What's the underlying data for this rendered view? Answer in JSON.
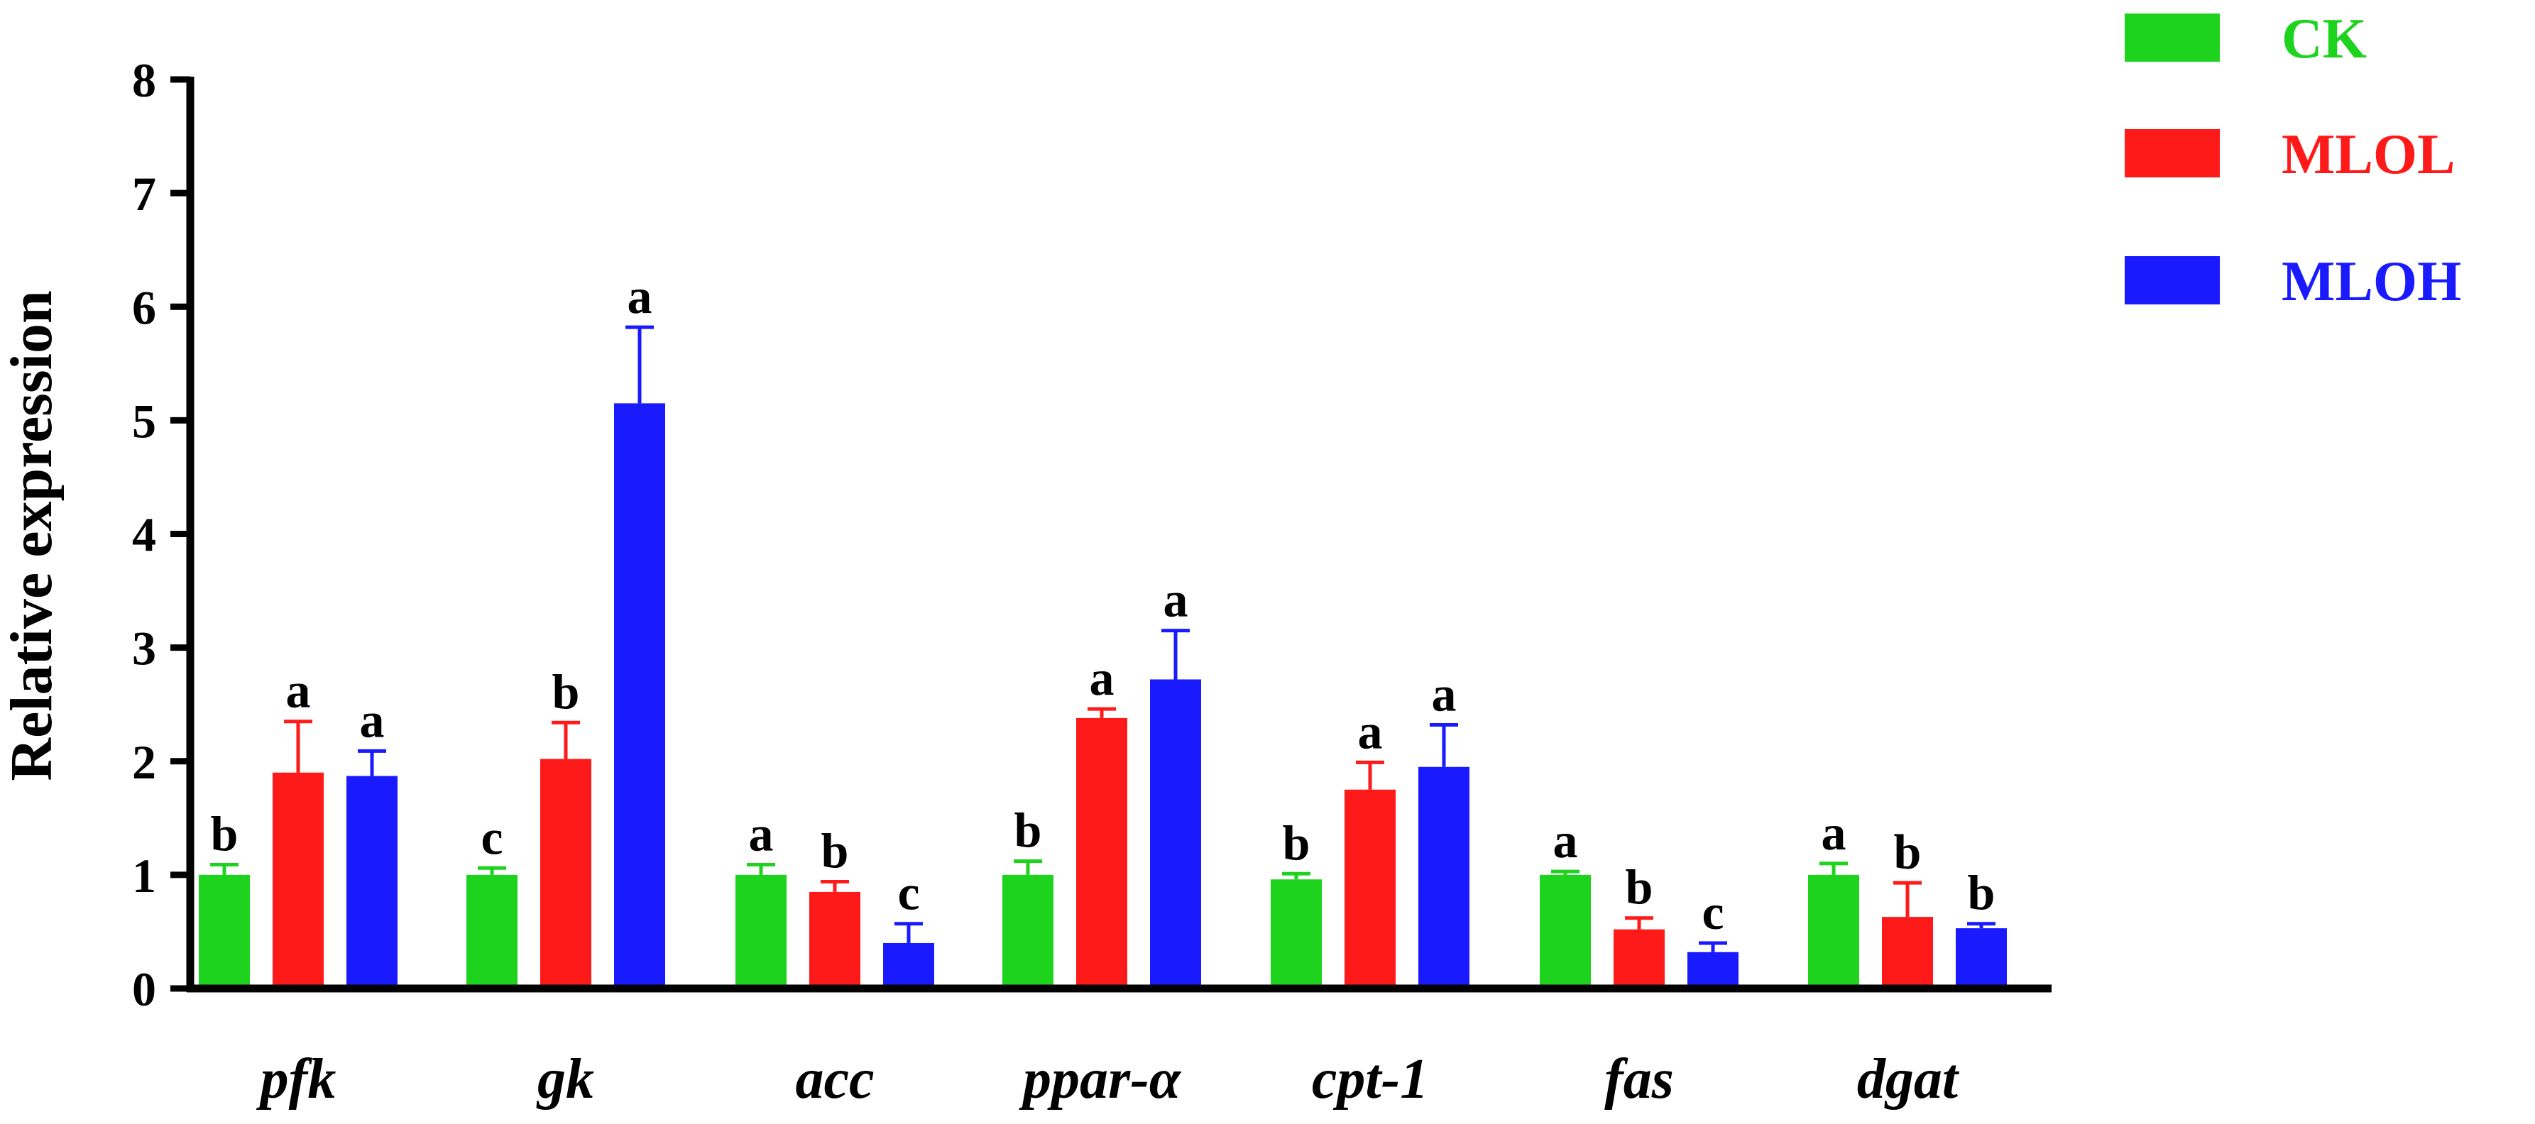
{
  "chart_data": {
    "type": "bar",
    "ylabel": "Relative expression",
    "xlabel": "",
    "ylim": [
      0,
      8
    ],
    "yticks": [
      "0",
      "1",
      "2",
      "3",
      "4",
      "5",
      "6",
      "7",
      "8"
    ],
    "grid": false,
    "legend_position": "top-right",
    "categories": [
      "pfk",
      "gk",
      "acc",
      "ppar-α",
      "cpt-1",
      "fas",
      "dgat"
    ],
    "series": [
      {
        "name": "CK",
        "color": "#1ed31e",
        "values": [
          1.0,
          1.0,
          1.0,
          1.0,
          0.96,
          1.0,
          1.0
        ],
        "errors": [
          0.09,
          0.06,
          0.09,
          0.12,
          0.05,
          0.03,
          0.1
        ],
        "labels": [
          "b",
          "c",
          "a",
          "b",
          "b",
          "a",
          "a"
        ]
      },
      {
        "name": "MLOL",
        "color": "#ff1a1a",
        "values": [
          1.9,
          2.02,
          0.85,
          2.38,
          1.75,
          0.52,
          0.63
        ],
        "errors": [
          0.45,
          0.32,
          0.09,
          0.08,
          0.24,
          0.1,
          0.3
        ],
        "labels": [
          "a",
          "b",
          "b",
          "a",
          "a",
          "b",
          "b"
        ]
      },
      {
        "name": "MLOH",
        "color": "#1a1aff",
        "values": [
          1.87,
          5.15,
          0.4,
          2.72,
          1.95,
          0.32,
          0.53
        ],
        "errors": [
          0.22,
          0.67,
          0.17,
          0.43,
          0.37,
          0.08,
          0.04
        ],
        "labels": [
          "a",
          "a",
          "c",
          "a",
          "a",
          "c",
          "b"
        ]
      }
    ]
  }
}
